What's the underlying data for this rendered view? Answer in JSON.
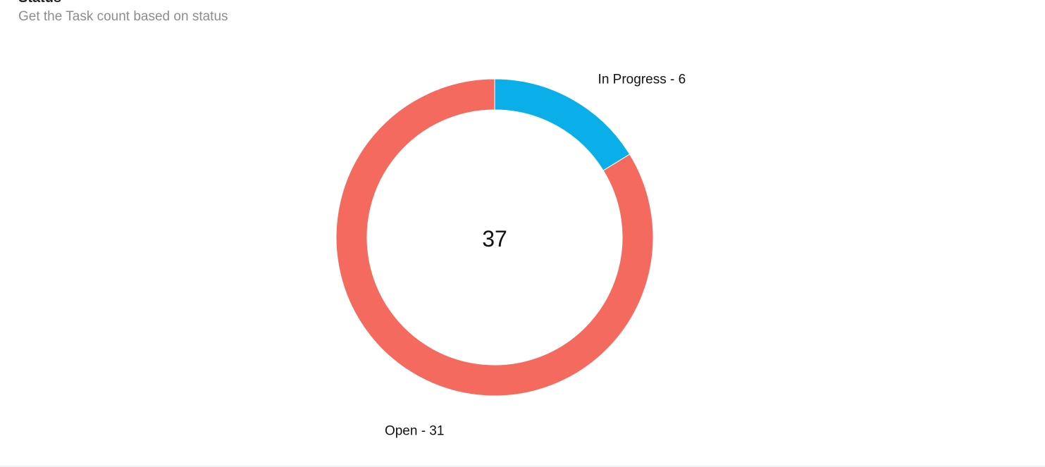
{
  "widget": {
    "title": "Status",
    "subtitle": "Get the Task count based on status"
  },
  "chart_data": {
    "type": "pie",
    "variant": "donut",
    "center_label": "37",
    "series": [
      {
        "name": "In Progress",
        "value": 6,
        "label": "In Progress - 6",
        "color": "#0aafe9"
      },
      {
        "name": "Open",
        "value": 31,
        "label": "Open - 31",
        "color": "#f56a5f"
      }
    ],
    "total": 37,
    "legend": "none"
  }
}
